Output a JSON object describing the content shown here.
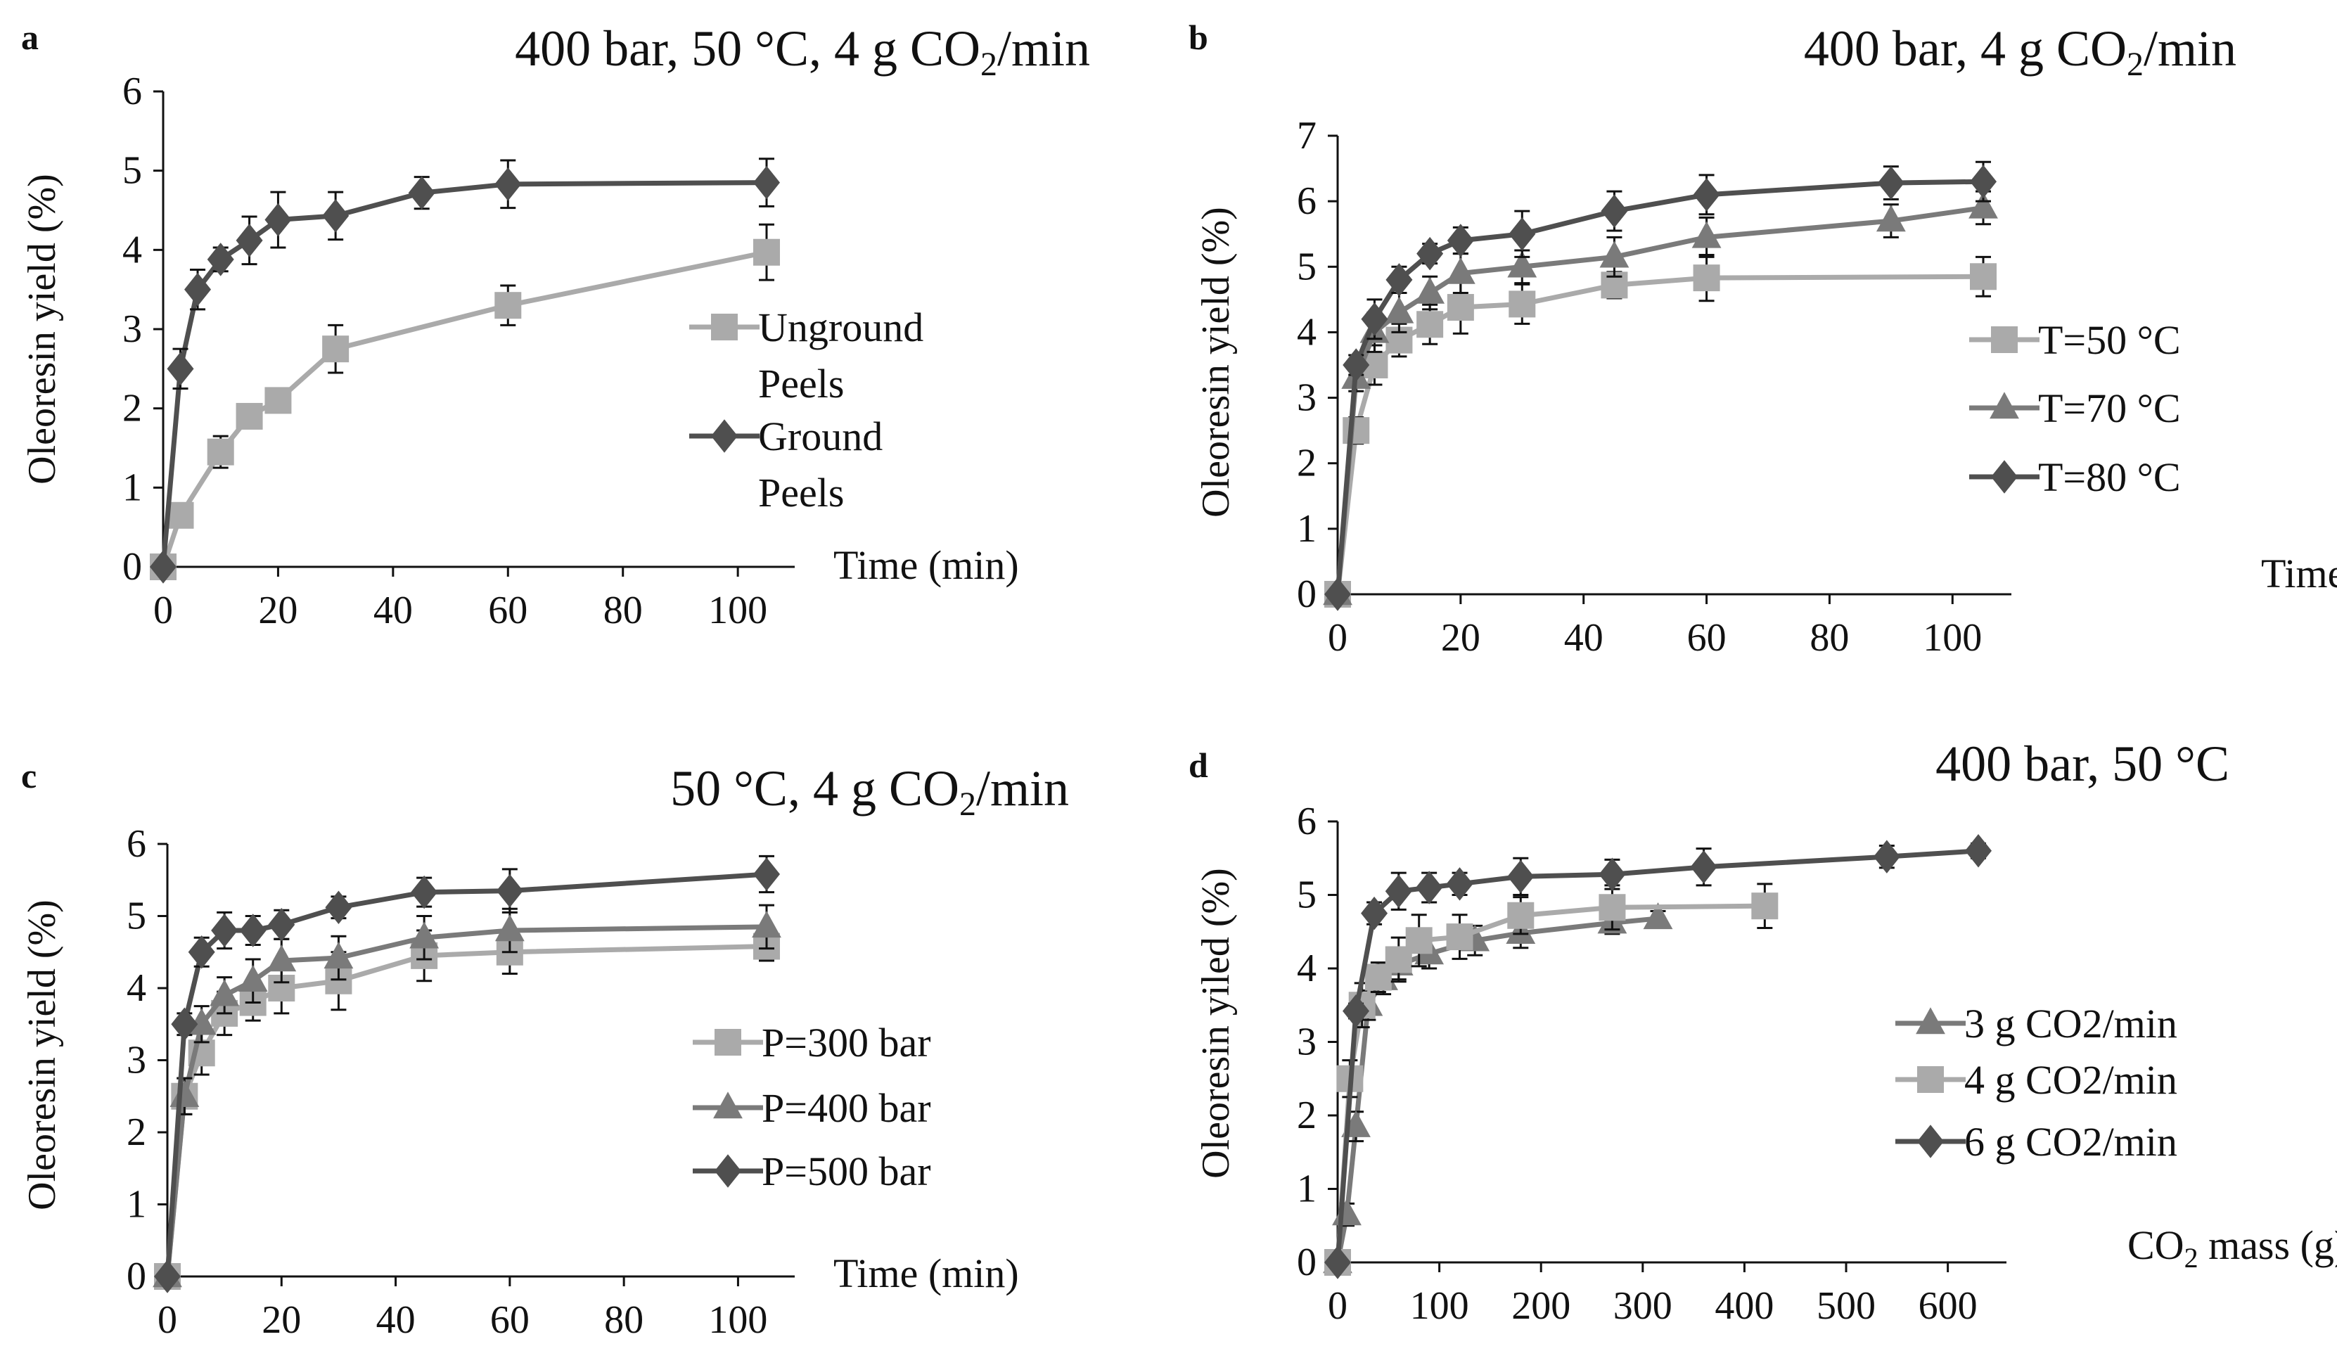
{
  "colors": {
    "light": "#aaaaaa",
    "mid": "#7a7a7a",
    "dark": "#4f4f4f",
    "axis": "#111111"
  },
  "chart_data": [
    {
      "panel": "a",
      "type": "line",
      "title": "400 bar, 50 °C, 4 g CO",
      "title_sub": "2",
      "title_tail": "/min",
      "xlabel": "Time  (min)",
      "ylabel": "Oleoresin yield (%)",
      "xlim": [
        0,
        105
      ],
      "ylim": [
        0,
        6
      ],
      "xticks": [
        0,
        20,
        40,
        60,
        80,
        100
      ],
      "yticks": [
        0,
        1,
        2,
        3,
        4,
        5,
        6
      ],
      "legend_position": "right",
      "series": [
        {
          "name": "Unground Peels",
          "legend_lines": [
            "Unground",
            "Peels"
          ],
          "marker": "square",
          "color": "#aaaaaa",
          "x": [
            0,
            3,
            10,
            15,
            20,
            30,
            60,
            105
          ],
          "y": [
            0,
            0.65,
            1.45,
            1.9,
            2.1,
            2.75,
            3.3,
            3.97
          ],
          "err": [
            0,
            0.1,
            0.2,
            0.15,
            0.15,
            0.3,
            0.25,
            0.35
          ]
        },
        {
          "name": "Ground Peels",
          "legend_lines": [
            "Ground",
            "Peels"
          ],
          "marker": "diamond",
          "color": "#4f4f4f",
          "x": [
            0,
            3,
            6,
            10,
            15,
            20,
            30,
            45,
            60,
            105
          ],
          "y": [
            0,
            2.5,
            3.5,
            3.88,
            4.12,
            4.38,
            4.43,
            4.72,
            4.83,
            4.85
          ],
          "err": [
            0,
            0.25,
            0.25,
            0.15,
            0.3,
            0.35,
            0.3,
            0.2,
            0.3,
            0.3
          ]
        }
      ]
    },
    {
      "panel": "b",
      "type": "line",
      "title": "400 bar, 4 g CO",
      "title_sub": "2",
      "title_tail": "/min",
      "xlabel": "Time  (min)",
      "ylabel": "Oleoresin yield (%)",
      "xlim": [
        0,
        105
      ],
      "ylim": [
        0,
        7
      ],
      "xticks": [
        0,
        20,
        40,
        60,
        80,
        100
      ],
      "yticks": [
        0,
        1,
        2,
        3,
        4,
        5,
        6,
        7
      ],
      "legend_position": "right",
      "series": [
        {
          "name": "T=50 °C",
          "legend_lines": [
            "T=50 °C"
          ],
          "marker": "square",
          "color": "#aaaaaa",
          "x": [
            0,
            3,
            6,
            10,
            15,
            20,
            30,
            45,
            60,
            105
          ],
          "y": [
            0,
            2.5,
            3.5,
            3.88,
            4.12,
            4.38,
            4.43,
            4.72,
            4.83,
            4.85
          ],
          "err": [
            0,
            0.2,
            0.3,
            0.25,
            0.3,
            0.4,
            0.3,
            0.2,
            0.35,
            0.3
          ]
        },
        {
          "name": "T=70 °C",
          "legend_lines": [
            "T=70 °C"
          ],
          "marker": "triangle",
          "color": "#7a7a7a",
          "x": [
            0,
            3,
            6,
            10,
            15,
            20,
            30,
            45,
            60,
            90,
            105
          ],
          "y": [
            0,
            3.3,
            4.0,
            4.3,
            4.6,
            4.9,
            5.0,
            5.15,
            5.45,
            5.7,
            5.9
          ],
          "err": [
            0,
            0.2,
            0.3,
            0.3,
            0.25,
            0.3,
            0.25,
            0.3,
            0.3,
            0.25,
            0.25
          ]
        },
        {
          "name": "T=80 °C",
          "legend_lines": [
            "T=80 °C"
          ],
          "marker": "diamond",
          "color": "#4f4f4f",
          "x": [
            0,
            3,
            6,
            10,
            15,
            20,
            30,
            45,
            60,
            90,
            105
          ],
          "y": [
            0,
            3.5,
            4.2,
            4.8,
            5.2,
            5.4,
            5.5,
            5.85,
            6.1,
            6.28,
            6.3
          ],
          "err": [
            0,
            0.15,
            0.3,
            0.2,
            0.15,
            0.2,
            0.35,
            0.3,
            0.3,
            0.25,
            0.3
          ]
        }
      ]
    },
    {
      "panel": "c",
      "type": "line",
      "title": "50 °C, 4 g CO",
      "title_sub": "2",
      "title_tail": "/min",
      "xlabel": "Time  (min)",
      "ylabel": "Oleoresin yield (%)",
      "xlim": [
        0,
        105
      ],
      "ylim": [
        0,
        6
      ],
      "xticks": [
        0,
        20,
        40,
        60,
        80,
        100
      ],
      "yticks": [
        0,
        1,
        2,
        3,
        4,
        5,
        6
      ],
      "legend_position": "right",
      "series": [
        {
          "name": "P=300 bar",
          "legend_lines": [
            "P=300 bar"
          ],
          "marker": "square",
          "color": "#aaaaaa",
          "x": [
            0,
            3,
            6,
            10,
            15,
            20,
            30,
            45,
            60,
            105
          ],
          "y": [
            0,
            2.5,
            3.1,
            3.65,
            3.8,
            4.0,
            4.1,
            4.45,
            4.5,
            4.58
          ],
          "err": [
            0,
            0.25,
            0.3,
            0.3,
            0.25,
            0.35,
            0.4,
            0.35,
            0.3,
            0.2
          ]
        },
        {
          "name": "P=400 bar",
          "legend_lines": [
            "P=400 bar"
          ],
          "marker": "triangle",
          "color": "#7a7a7a",
          "x": [
            0,
            3,
            6,
            10,
            15,
            20,
            30,
            45,
            60,
            105
          ],
          "y": [
            0,
            2.5,
            3.5,
            3.9,
            4.1,
            4.38,
            4.42,
            4.7,
            4.8,
            4.85
          ],
          "err": [
            0,
            0.25,
            0.25,
            0.25,
            0.3,
            0.3,
            0.3,
            0.3,
            0.3,
            0.3
          ]
        },
        {
          "name": "P=500 bar",
          "legend_lines": [
            "P=500 bar"
          ],
          "marker": "diamond",
          "color": "#4f4f4f",
          "x": [
            0,
            3,
            6,
            10,
            15,
            20,
            30,
            45,
            60,
            105
          ],
          "y": [
            0,
            3.5,
            4.5,
            4.8,
            4.8,
            4.88,
            5.12,
            5.33,
            5.35,
            5.58
          ],
          "err": [
            0,
            0.15,
            0.2,
            0.25,
            0.2,
            0.2,
            0.15,
            0.2,
            0.3,
            0.25
          ]
        }
      ]
    },
    {
      "panel": "d",
      "type": "line",
      "title": "400 bar, 50 °C",
      "title_sub": "",
      "title_tail": "",
      "xlabel": "CO",
      "xlabel_sub": "2",
      "xlabel_tail": " mass  (g)",
      "ylabel": "Oleoresin yiled (%)",
      "xlim": [
        0,
        630
      ],
      "ylim": [
        0,
        6
      ],
      "xticks": [
        0,
        100,
        200,
        300,
        400,
        500,
        600
      ],
      "yticks": [
        0,
        1,
        2,
        3,
        4,
        5,
        6
      ],
      "legend_position": "right",
      "series": [
        {
          "name": "3 g CO2/min",
          "legend_lines": [
            "3 g CO2/min"
          ],
          "marker": "triangle",
          "color": "#7a7a7a",
          "x": [
            0,
            9,
            18,
            30,
            45,
            60,
            90,
            135,
            180,
            270,
            315
          ],
          "y": [
            0,
            0.65,
            1.85,
            3.5,
            3.85,
            4.05,
            4.2,
            4.38,
            4.48,
            4.62,
            4.68
          ],
          "err": [
            0,
            0.15,
            0.2,
            0.2,
            0.2,
            0.2,
            0.2,
            0.2,
            0.2,
            0.15,
            0.1
          ]
        },
        {
          "name": "4 g CO2/min",
          "legend_lines": [
            "4 g CO2/min"
          ],
          "marker": "square",
          "color": "#aaaaaa",
          "x": [
            0,
            12,
            24,
            40,
            60,
            80,
            120,
            180,
            270,
            420
          ],
          "y": [
            0,
            2.5,
            3.5,
            3.88,
            4.12,
            4.38,
            4.43,
            4.72,
            4.83,
            4.85
          ],
          "err": [
            0,
            0.25,
            0.3,
            0.2,
            0.3,
            0.35,
            0.3,
            0.25,
            0.3,
            0.3
          ]
        },
        {
          "name": "6 g CO2/min",
          "legend_lines": [
            "6 g CO2/min"
          ],
          "marker": "diamond",
          "color": "#4f4f4f",
          "x": [
            0,
            18,
            36,
            60,
            90,
            120,
            180,
            270,
            360,
            540,
            630
          ],
          "y": [
            0,
            3.42,
            4.75,
            5.05,
            5.1,
            5.15,
            5.25,
            5.28,
            5.38,
            5.52,
            5.6
          ],
          "err": [
            0,
            0.1,
            0.15,
            0.25,
            0.2,
            0.15,
            0.25,
            0.2,
            0.25,
            0.15,
            0.1
          ]
        }
      ]
    }
  ]
}
